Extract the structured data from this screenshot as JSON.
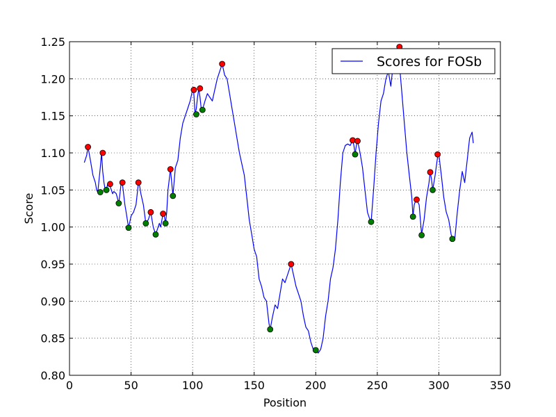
{
  "chart_data": {
    "type": "line",
    "xlabel": "Position",
    "ylabel": "Score",
    "xlim": [
      0,
      350
    ],
    "ylim": [
      0.8,
      1.25
    ],
    "xticks": [
      "0",
      "50",
      "100",
      "150",
      "200",
      "250",
      "300",
      "350"
    ],
    "xtick_values": [
      0,
      50,
      100,
      150,
      200,
      250,
      300,
      350
    ],
    "yticks": [
      "0.80",
      "0.85",
      "0.90",
      "0.95",
      "1.00",
      "1.05",
      "1.10",
      "1.15",
      "1.20",
      "1.25"
    ],
    "ytick_values": [
      0.8,
      0.85,
      0.9,
      0.95,
      1.0,
      1.05,
      1.1,
      1.15,
      1.2,
      1.25
    ],
    "grid": true,
    "legend_position": "top-right",
    "series": [
      {
        "name": "Scores for FOSb",
        "color": "#0000ff",
        "x": [
          12,
          14,
          15,
          17,
          19,
          20,
          21,
          22,
          23,
          25,
          26,
          27,
          28,
          29,
          30,
          31,
          32,
          34,
          35,
          36,
          38,
          40,
          41,
          42,
          43,
          45,
          46,
          48,
          50,
          52,
          54,
          56,
          57,
          58,
          60,
          62,
          64,
          66,
          68,
          70,
          72,
          73,
          74,
          76,
          77,
          78,
          79,
          80,
          82,
          84,
          86,
          88,
          90,
          92,
          94,
          96,
          98,
          100,
          101,
          102,
          103,
          104,
          105,
          106,
          107,
          108,
          110,
          112,
          114,
          116,
          118,
          120,
          122,
          124,
          126,
          128,
          130,
          132,
          134,
          136,
          138,
          140,
          142,
          144,
          146,
          148,
          150,
          152,
          154,
          156,
          158,
          160,
          162,
          163,
          165,
          167,
          169,
          171,
          173,
          175,
          177,
          179,
          180,
          182,
          184,
          186,
          188,
          190,
          192,
          194,
          196,
          198,
          200,
          202,
          204,
          206,
          208,
          210,
          212,
          214,
          216,
          218,
          220,
          222,
          224,
          226,
          228,
          230,
          231,
          232,
          233,
          234,
          236,
          238,
          240,
          242,
          244,
          245,
          247,
          249,
          251,
          253,
          255,
          257,
          259,
          261,
          263,
          265,
          267,
          268,
          270,
          272,
          274,
          276,
          278,
          279,
          280,
          281,
          282,
          284,
          286,
          288,
          290,
          292,
          293,
          294,
          295,
          297,
          299,
          300,
          302,
          304,
          306,
          308,
          310,
          311,
          313,
          315,
          317,
          319,
          321,
          323,
          325,
          327,
          328
        ],
        "y": [
          1.087,
          1.097,
          1.108,
          1.09,
          1.07,
          1.065,
          1.06,
          1.05,
          1.047,
          1.08,
          1.1,
          1.075,
          1.06,
          1.05,
          1.05,
          1.058,
          1.06,
          1.05,
          1.045,
          1.048,
          1.045,
          1.032,
          1.045,
          1.06,
          1.058,
          1.03,
          1.02,
          0.999,
          1.015,
          1.02,
          1.03,
          1.06,
          1.055,
          1.045,
          1.03,
          1.005,
          1.01,
          1.02,
          1.0,
          0.99,
          1.0,
          1.005,
          1.0,
          1.018,
          1.015,
          1.005,
          1.02,
          1.05,
          1.078,
          1.042,
          1.08,
          1.09,
          1.12,
          1.14,
          1.15,
          1.16,
          1.17,
          1.185,
          1.18,
          1.152,
          1.16,
          1.175,
          1.187,
          1.175,
          1.16,
          1.158,
          1.17,
          1.18,
          1.175,
          1.17,
          1.185,
          1.2,
          1.21,
          1.22,
          1.205,
          1.2,
          1.18,
          1.16,
          1.14,
          1.12,
          1.1,
          1.085,
          1.07,
          1.04,
          1.01,
          0.99,
          0.97,
          0.96,
          0.93,
          0.92,
          0.905,
          0.9,
          0.87,
          0.862,
          0.88,
          0.895,
          0.89,
          0.91,
          0.93,
          0.925,
          0.935,
          0.945,
          0.95,
          0.935,
          0.92,
          0.91,
          0.9,
          0.88,
          0.865,
          0.86,
          0.845,
          0.835,
          0.834,
          0.83,
          0.835,
          0.85,
          0.88,
          0.9,
          0.93,
          0.945,
          0.97,
          1.01,
          1.06,
          1.1,
          1.11,
          1.112,
          1.11,
          1.117,
          1.11,
          1.098,
          1.11,
          1.116,
          1.1,
          1.08,
          1.05,
          1.02,
          1.01,
          1.007,
          1.05,
          1.1,
          1.14,
          1.17,
          1.18,
          1.2,
          1.21,
          1.19,
          1.22,
          1.235,
          1.243,
          1.22,
          1.18,
          1.14,
          1.1,
          1.07,
          1.04,
          1.014,
          1.03,
          1.035,
          1.037,
          1.03,
          0.99,
          1.01,
          1.04,
          1.06,
          1.074,
          1.065,
          1.05,
          1.07,
          1.095,
          1.098,
          1.07,
          1.04,
          1.02,
          1.01,
          0.99,
          0.984,
          0.985,
          1.02,
          1.05,
          1.075,
          1.06,
          1.09,
          1.12,
          1.128,
          1.113
        ]
      }
    ],
    "peak_markers": {
      "color": "#ff0000",
      "points": [
        [
          15,
          1.108
        ],
        [
          27,
          1.1
        ],
        [
          33,
          1.058
        ],
        [
          43,
          1.06
        ],
        [
          56,
          1.06
        ],
        [
          66,
          1.02
        ],
        [
          76,
          1.018
        ],
        [
          82,
          1.078
        ],
        [
          101,
          1.185
        ],
        [
          106,
          1.187
        ],
        [
          124,
          1.22
        ],
        [
          180,
          0.95
        ],
        [
          230,
          1.117
        ],
        [
          234,
          1.116
        ],
        [
          268,
          1.243
        ],
        [
          282,
          1.037
        ],
        [
          293,
          1.074
        ],
        [
          299,
          1.098
        ]
      ]
    },
    "trough_markers": {
      "color": "#008000",
      "points": [
        [
          25,
          1.047
        ],
        [
          30,
          1.05
        ],
        [
          40,
          1.032
        ],
        [
          48,
          0.999
        ],
        [
          62,
          1.005
        ],
        [
          70,
          0.99
        ],
        [
          78,
          1.005
        ],
        [
          84,
          1.042
        ],
        [
          103,
          1.152
        ],
        [
          108,
          1.158
        ],
        [
          163,
          0.862
        ],
        [
          200,
          0.834
        ],
        [
          232,
          1.098
        ],
        [
          245,
          1.007
        ],
        [
          279,
          1.014
        ],
        [
          286,
          0.989
        ],
        [
          295,
          1.05
        ],
        [
          311,
          0.984
        ]
      ]
    }
  }
}
